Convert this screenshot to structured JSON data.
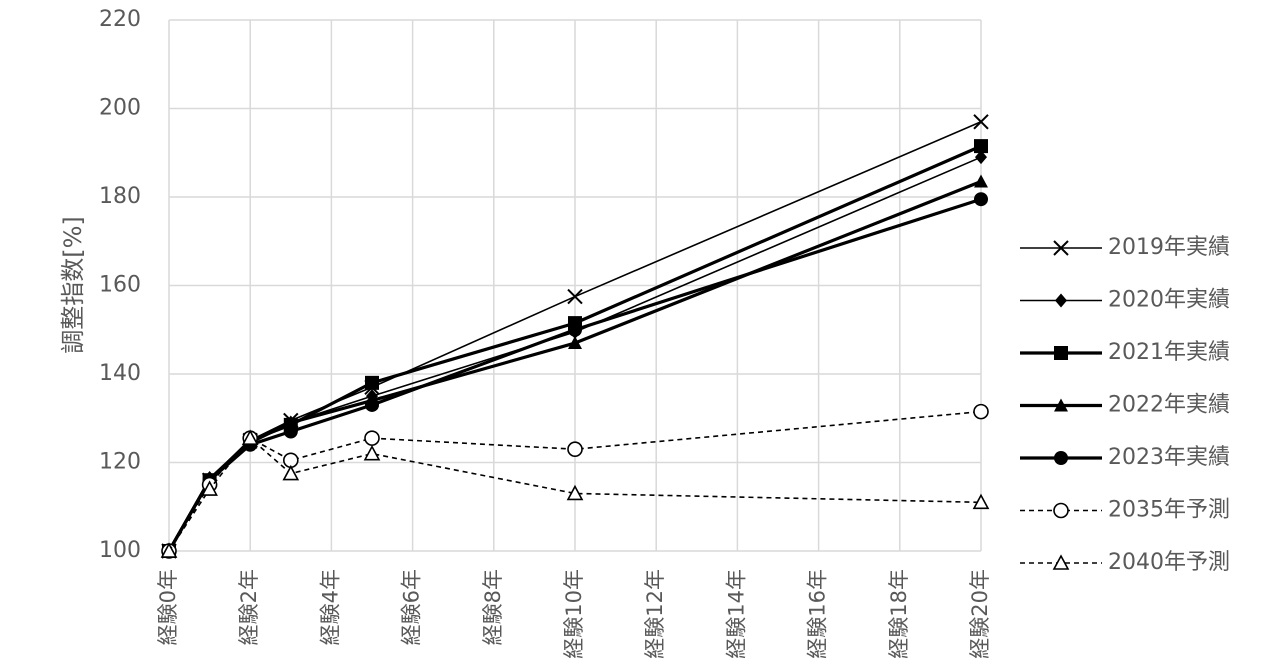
{
  "chart_data": {
    "type": "line",
    "ylabel": "調整指数[%]",
    "xlabel": "",
    "ylim": [
      100,
      220
    ],
    "yticks": [
      100,
      120,
      140,
      160,
      180,
      200,
      220
    ],
    "xlim": [
      0,
      20
    ],
    "xtick_values": [
      0,
      2,
      4,
      6,
      8,
      10,
      12,
      14,
      16,
      18,
      20
    ],
    "xtick_labels": [
      "経験0年",
      "経験2年",
      "経験4年",
      "経験6年",
      "経験8年",
      "経験10年",
      "経験12年",
      "経験14年",
      "経験16年",
      "経験18年",
      "経験20年"
    ],
    "grid": true,
    "legend_position": "right",
    "series": [
      {
        "name": "2019年実績",
        "marker": "x",
        "line": "solid-thin",
        "x": [
          0,
          1,
          2,
          3,
          5,
          10,
          20
        ],
        "y": [
          100,
          116,
          125,
          129.5,
          137,
          157.5,
          197
        ]
      },
      {
        "name": "2020年実績",
        "marker": "diamond",
        "line": "solid-thin",
        "x": [
          0,
          1,
          2,
          3,
          5,
          10,
          20
        ],
        "y": [
          100,
          116.5,
          125,
          129,
          135,
          149.5,
          189
        ]
      },
      {
        "name": "2021年実績",
        "marker": "square",
        "line": "solid-bold",
        "x": [
          0,
          1,
          2,
          3,
          5,
          10,
          20
        ],
        "y": [
          100,
          116,
          125,
          128.5,
          138,
          151.5,
          191.5
        ]
      },
      {
        "name": "2022年実績",
        "marker": "triangle",
        "line": "solid-bold",
        "x": [
          0,
          1,
          2,
          3,
          5,
          10,
          20
        ],
        "y": [
          100,
          116,
          124.5,
          129,
          134,
          147,
          183.5
        ]
      },
      {
        "name": "2023年実績",
        "marker": "circle",
        "line": "solid-bold",
        "x": [
          0,
          1,
          2,
          3,
          5,
          10,
          20
        ],
        "y": [
          100,
          116,
          124,
          127,
          133,
          150,
          179.5
        ]
      },
      {
        "name": "2035年予測",
        "marker": "circle-open",
        "line": "dashed",
        "x": [
          0,
          1,
          2,
          3,
          5,
          10,
          20
        ],
        "y": [
          100,
          115,
          125.5,
          120.5,
          125.5,
          123,
          131.5
        ]
      },
      {
        "name": "2040年予測",
        "marker": "triangle-open",
        "line": "dashed",
        "x": [
          0,
          1,
          2,
          3,
          5,
          10,
          20
        ],
        "y": [
          100,
          114,
          125.5,
          117.5,
          122,
          113,
          111
        ]
      }
    ]
  }
}
